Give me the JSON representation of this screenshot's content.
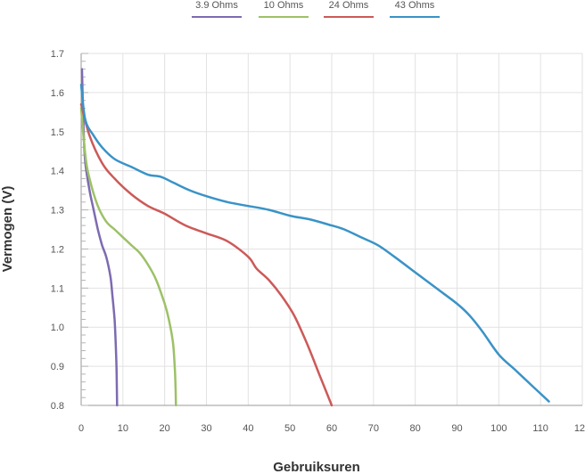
{
  "chart_data": {
    "type": "line",
    "xlabel": "Gebruiksuren",
    "ylabel": "Vermogen (V)",
    "xlim": [
      0,
      120
    ],
    "ylim": [
      0.8,
      1.7
    ],
    "x_ticks": [
      "0",
      "10",
      "20",
      "30",
      "40",
      "50",
      "60",
      "70",
      "80",
      "90",
      "100",
      "110",
      "120"
    ],
    "y_ticks": [
      "0.8",
      "0.9",
      "1.0",
      "1.1",
      "1.2",
      "1.3",
      "1.4",
      "1.5",
      "1.6",
      "1.7"
    ],
    "grid": true,
    "legend_position": "top",
    "series": [
      {
        "name": "3.9 Ohms",
        "color": "#7d6bb1",
        "points": [
          [
            0.2,
            1.66
          ],
          [
            0.6,
            1.5
          ],
          [
            1,
            1.42
          ],
          [
            2,
            1.35
          ],
          [
            3,
            1.3
          ],
          [
            4,
            1.25
          ],
          [
            5,
            1.21
          ],
          [
            6,
            1.18
          ],
          [
            7,
            1.13
          ],
          [
            7.5,
            1.08
          ],
          [
            8,
            1.02
          ],
          [
            8.3,
            0.95
          ],
          [
            8.5,
            0.88
          ],
          [
            8.6,
            0.8
          ]
        ]
      },
      {
        "name": "10 Ohms",
        "color": "#9dc167",
        "points": [
          [
            0,
            1.56
          ],
          [
            1,
            1.44
          ],
          [
            2,
            1.38
          ],
          [
            4,
            1.31
          ],
          [
            6,
            1.27
          ],
          [
            8,
            1.25
          ],
          [
            10,
            1.23
          ],
          [
            12,
            1.21
          ],
          [
            14,
            1.19
          ],
          [
            16,
            1.16
          ],
          [
            18,
            1.12
          ],
          [
            20,
            1.06
          ],
          [
            21,
            1.02
          ],
          [
            22,
            0.96
          ],
          [
            22.4,
            0.9
          ],
          [
            22.6,
            0.85
          ],
          [
            22.7,
            0.8
          ]
        ]
      },
      {
        "name": "24 Ohms",
        "color": "#cc5a58",
        "points": [
          [
            0,
            1.57
          ],
          [
            2,
            1.49
          ],
          [
            5,
            1.42
          ],
          [
            8,
            1.38
          ],
          [
            12,
            1.34
          ],
          [
            16,
            1.31
          ],
          [
            20,
            1.29
          ],
          [
            25,
            1.26
          ],
          [
            30,
            1.24
          ],
          [
            35,
            1.22
          ],
          [
            40,
            1.18
          ],
          [
            42,
            1.15
          ],
          [
            45,
            1.12
          ],
          [
            48,
            1.08
          ],
          [
            51,
            1.03
          ],
          [
            54,
            0.96
          ],
          [
            57,
            0.88
          ],
          [
            60,
            0.8
          ]
        ]
      },
      {
        "name": "43 Ohms",
        "color": "#3a93c7",
        "points": [
          [
            0,
            1.62
          ],
          [
            1,
            1.53
          ],
          [
            3,
            1.49
          ],
          [
            5,
            1.46
          ],
          [
            8,
            1.43
          ],
          [
            12,
            1.41
          ],
          [
            16,
            1.39
          ],
          [
            19,
            1.385
          ],
          [
            22,
            1.37
          ],
          [
            26,
            1.35
          ],
          [
            30,
            1.335
          ],
          [
            35,
            1.32
          ],
          [
            40,
            1.31
          ],
          [
            45,
            1.3
          ],
          [
            50,
            1.285
          ],
          [
            55,
            1.275
          ],
          [
            60,
            1.26
          ],
          [
            63,
            1.25
          ],
          [
            67,
            1.23
          ],
          [
            71,
            1.21
          ],
          [
            75,
            1.18
          ],
          [
            80,
            1.14
          ],
          [
            85,
            1.1
          ],
          [
            90,
            1.06
          ],
          [
            93,
            1.03
          ],
          [
            96,
            0.99
          ],
          [
            100,
            0.93
          ],
          [
            104,
            0.89
          ],
          [
            108,
            0.85
          ],
          [
            112,
            0.81
          ]
        ]
      }
    ]
  }
}
